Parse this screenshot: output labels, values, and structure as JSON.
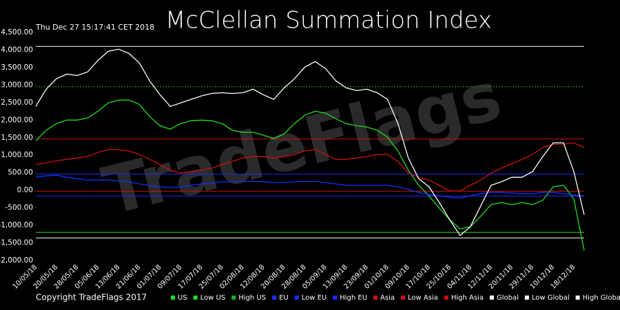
{
  "chart_data": {
    "type": "line",
    "title": "McClellan Summation Index",
    "subtitle": "Thu Dec 27 15:17:41 CET 2018",
    "watermark": "TradeFlags",
    "footer": "Copyright TradeFlags 2017",
    "categories": [
      "10/05/18",
      null,
      "20/05/18",
      null,
      "28/05/18",
      null,
      "05/06/18",
      null,
      "13/06/18",
      null,
      "21/06/18",
      null,
      "01/07/18",
      null,
      "09/07/18",
      null,
      "17/07/18",
      null,
      "25/07/18",
      null,
      "02/08/18",
      null,
      "12/08/18",
      null,
      "20/08/18",
      null,
      "28/08/18",
      null,
      "05/09/18",
      null,
      "13/09/18",
      null,
      "23/09/18",
      null,
      "01/10/18",
      null,
      "09/10/18",
      null,
      "17/10/18",
      null,
      "25/10/18",
      null,
      "04/11/18",
      null,
      "12/11/18",
      null,
      "20/11/18",
      null,
      "29/11/18",
      null,
      "10/12/18",
      null,
      "18/12/18",
      null
    ],
    "series": [
      {
        "name": "US",
        "color": "#22dd22",
        "values": [
          1410,
          1710,
          1900,
          2000,
          2000,
          2060,
          2250,
          2490,
          2570,
          2570,
          2450,
          2100,
          1840,
          1740,
          1900,
          1980,
          2000,
          1980,
          1900,
          1710,
          1650,
          1650,
          1570,
          1470,
          1610,
          1900,
          2140,
          2250,
          2200,
          2040,
          1900,
          1840,
          1800,
          1710,
          1510,
          1120,
          570,
          140,
          -160,
          -510,
          -840,
          -1100,
          -1040,
          -740,
          -410,
          -350,
          -410,
          -350,
          -410,
          -290,
          100,
          140,
          -250,
          -1720
        ]
      },
      {
        "name": "Low US",
        "color": "#22dd22",
        "value": -1200
      },
      {
        "name": "High US",
        "color": "#22aa22",
        "value": 2950
      },
      {
        "name": "EU",
        "color": "#1530ff",
        "values": [
          370,
          410,
          430,
          370,
          330,
          290,
          290,
          290,
          270,
          240,
          180,
          140,
          100,
          80,
          100,
          140,
          180,
          200,
          240,
          240,
          250,
          250,
          240,
          220,
          220,
          240,
          250,
          250,
          220,
          180,
          140,
          140,
          140,
          140,
          140,
          100,
          20,
          -60,
          -120,
          -160,
          -200,
          -220,
          -160,
          -100,
          -60,
          -60,
          -80,
          -100,
          -100,
          -60,
          -60,
          -100,
          -140,
          -160
        ]
      },
      {
        "name": "Low EU",
        "color": "#1530ff",
        "value": -170
      },
      {
        "name": "High EU",
        "color": "#1530ff",
        "value": 460
      },
      {
        "name": "Asia",
        "color": "#cc1111",
        "values": [
          730,
          780,
          840,
          880,
          920,
          960,
          1080,
          1160,
          1160,
          1120,
          1020,
          880,
          730,
          570,
          490,
          530,
          570,
          630,
          730,
          820,
          920,
          960,
          960,
          920,
          960,
          1020,
          1120,
          1160,
          1020,
          880,
          880,
          920,
          960,
          1020,
          1020,
          820,
          490,
          370,
          290,
          140,
          -20,
          -20,
          140,
          290,
          490,
          630,
          760,
          880,
          1020,
          1220,
          1310,
          1310,
          1350,
          1220
        ]
      },
      {
        "name": "Low Asia",
        "color": "#cc1111",
        "value": -30
      },
      {
        "name": "High Asia",
        "color": "#cc1111",
        "value": 1460
      },
      {
        "name": "Global",
        "color": "#ffffff",
        "values": [
          2390,
          2880,
          3180,
          3310,
          3270,
          3370,
          3700,
          3960,
          4020,
          3900,
          3630,
          3120,
          2720,
          2390,
          2490,
          2590,
          2690,
          2760,
          2780,
          2760,
          2780,
          2880,
          2720,
          2590,
          2920,
          3180,
          3510,
          3670,
          3470,
          3120,
          2920,
          2840,
          2880,
          2780,
          2590,
          1900,
          920,
          330,
          100,
          -350,
          -840,
          -1290,
          -1040,
          -450,
          140,
          240,
          370,
          370,
          530,
          960,
          1350,
          1350,
          530,
          -700
        ]
      },
      {
        "name": "Low Global",
        "color": "#ffffff",
        "value": -1360
      },
      {
        "name": "High Global",
        "color": "#ffffff",
        "value": 4100
      }
    ],
    "ylim": [
      -2000,
      4500
    ],
    "yticks": [
      {
        "value": -2000,
        "label": "-2,000.00"
      },
      {
        "value": -1500,
        "label": "-1,500.00"
      },
      {
        "value": -1000,
        "label": "-1,000.00"
      },
      {
        "value": -500,
        "label": "-500.00"
      },
      {
        "value": 0,
        "label": "0.00"
      },
      {
        "value": 500,
        "label": "500.00"
      },
      {
        "value": 1000,
        "label": "1,000.00"
      },
      {
        "value": 1500,
        "label": "1,500.00"
      },
      {
        "value": 2000,
        "label": "2,000.00"
      },
      {
        "value": 2500,
        "label": "2,500.00"
      },
      {
        "value": 3000,
        "label": "3,000.00"
      },
      {
        "value": 3500,
        "label": "3,500.00"
      },
      {
        "value": 4000,
        "label": "4,000.00"
      },
      {
        "value": 4500,
        "label": "4,500.00"
      }
    ],
    "background": "#000000"
  }
}
